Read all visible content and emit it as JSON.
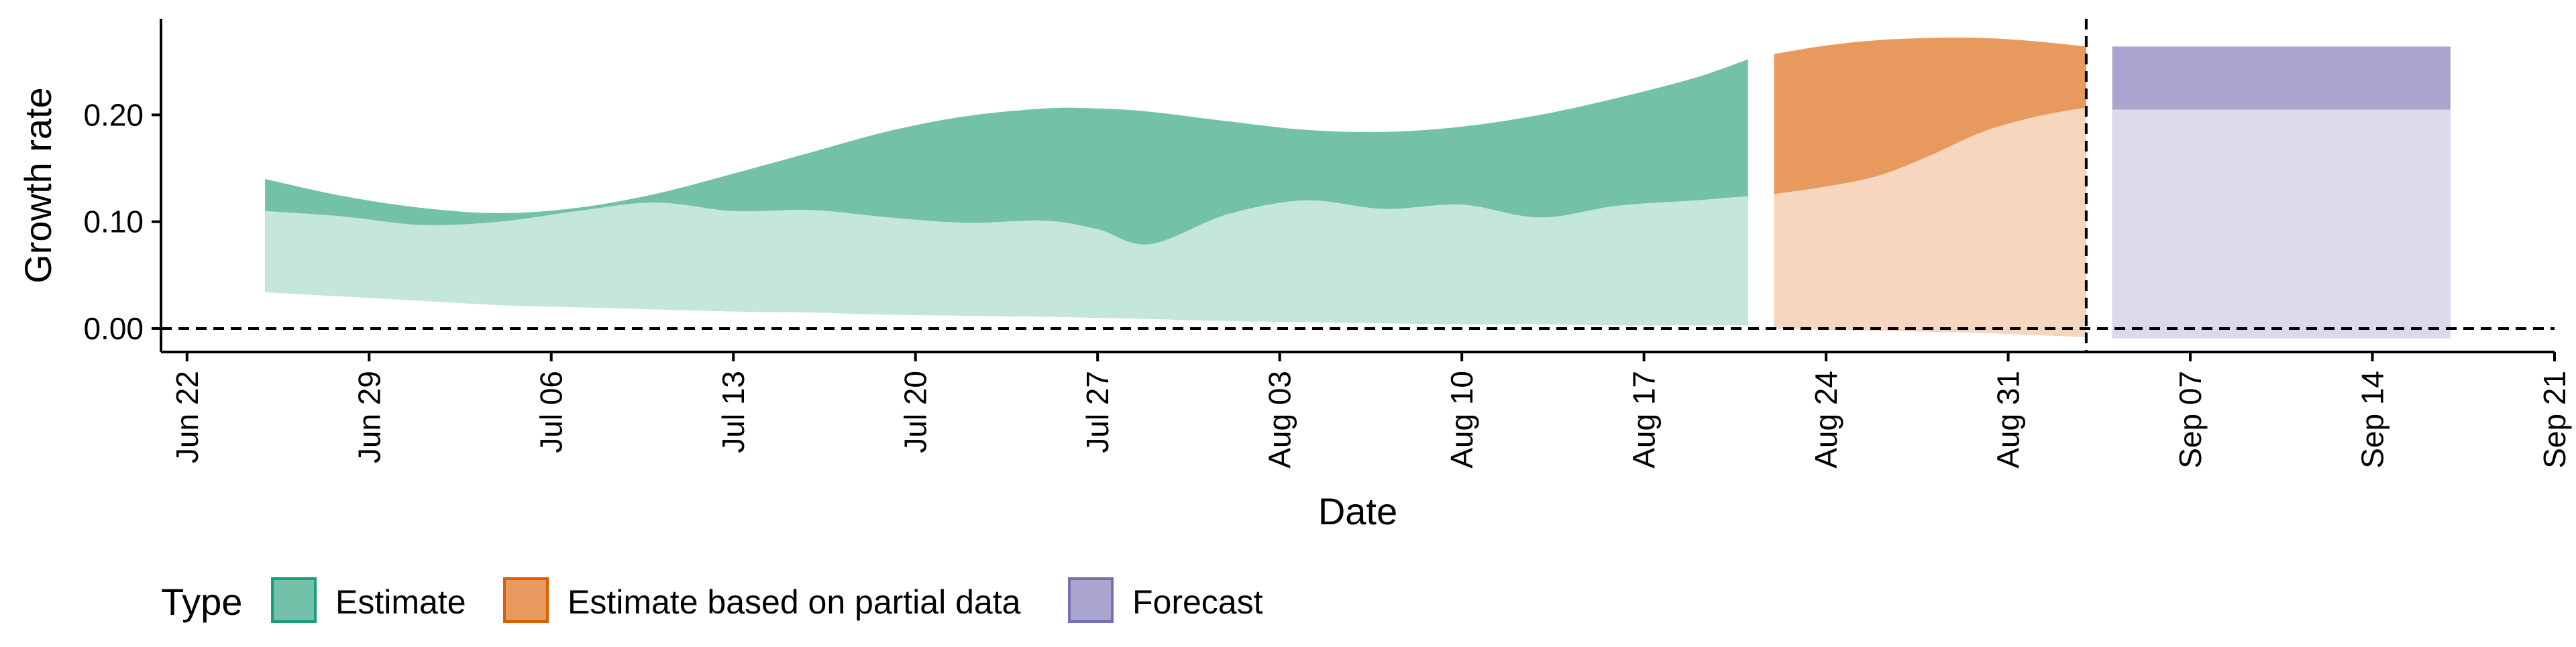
{
  "chart_data": {
    "type": "area",
    "xlabel": "Date",
    "ylabel": "Growth rate",
    "x_ticks": [
      {
        "date": "2020-06-22",
        "label": "Jun 22"
      },
      {
        "date": "2020-06-29",
        "label": "Jun 29"
      },
      {
        "date": "2020-07-06",
        "label": "Jul 06"
      },
      {
        "date": "2020-07-13",
        "label": "Jul 13"
      },
      {
        "date": "2020-07-20",
        "label": "Jul 20"
      },
      {
        "date": "2020-07-27",
        "label": "Jul 27"
      },
      {
        "date": "2020-08-03",
        "label": "Aug 03"
      },
      {
        "date": "2020-08-10",
        "label": "Aug 10"
      },
      {
        "date": "2020-08-17",
        "label": "Aug 17"
      },
      {
        "date": "2020-08-24",
        "label": "Aug 24"
      },
      {
        "date": "2020-08-31",
        "label": "Aug 31"
      },
      {
        "date": "2020-09-07",
        "label": "Sep 07"
      },
      {
        "date": "2020-09-14",
        "label": "Sep 14"
      },
      {
        "date": "2020-09-21",
        "label": "Sep 21"
      }
    ],
    "y_ticks": [
      {
        "value": 0.0,
        "label": "0.00"
      },
      {
        "value": 0.1,
        "label": "0.10"
      },
      {
        "value": 0.2,
        "label": "0.20"
      }
    ],
    "xlim": [
      "2020-06-21",
      "2020-09-21"
    ],
    "ylim": [
      -0.022,
      0.29
    ],
    "grid": false,
    "reference_lines": [
      {
        "axis": "y",
        "value": 0,
        "style": "dashed"
      },
      {
        "axis": "x",
        "value": "2020-09-03",
        "style": "dashed"
      }
    ],
    "legend": {
      "title": "Type",
      "position": "bottom-left",
      "items": [
        {
          "label": "Estimate",
          "fill": "#72C1A8",
          "border": "#1B9E77"
        },
        {
          "label": "Estimate based on partial data",
          "fill": "#E89A5E",
          "border": "#D95F02"
        },
        {
          "label": "Forecast",
          "fill": "#A9A5CE",
          "border": "#7570B3"
        }
      ]
    },
    "series": [
      {
        "name": "Estimate",
        "outer_color": "#72C1A8",
        "inner_color": "#C4E6DC",
        "dates": [
          "2020-06-25",
          "2020-06-28",
          "2020-07-01",
          "2020-07-04",
          "2020-07-07",
          "2020-07-10",
          "2020-07-13",
          "2020-07-16",
          "2020-07-19",
          "2020-07-22",
          "2020-07-25",
          "2020-07-27",
          "2020-07-29",
          "2020-08-01",
          "2020-08-04",
          "2020-08-07",
          "2020-08-10",
          "2020-08-13",
          "2020-08-16",
          "2020-08-19",
          "2020-08-21"
        ],
        "outer_upper": [
          0.14,
          0.124,
          0.113,
          0.108,
          0.113,
          0.126,
          0.145,
          0.165,
          0.185,
          0.199,
          0.206,
          0.206,
          0.203,
          0.194,
          0.186,
          0.184,
          0.189,
          0.2,
          0.216,
          0.235,
          0.252
        ],
        "inner_upper": [
          0.11,
          0.105,
          0.097,
          0.1,
          0.11,
          0.118,
          0.11,
          0.111,
          0.104,
          0.099,
          0.101,
          0.093,
          0.079,
          0.107,
          0.12,
          0.112,
          0.116,
          0.104,
          0.115,
          0.12,
          0.124
        ],
        "lower": [
          0.034,
          0.03,
          0.026,
          0.022,
          0.02,
          0.018,
          0.016,
          0.015,
          0.013,
          0.012,
          0.011,
          0.01,
          0.009,
          0.007,
          0.006,
          0.005,
          0.004,
          0.004,
          0.003,
          0.003,
          0.003
        ]
      },
      {
        "name": "Estimate based on partial data",
        "outer_color": "#E89A5E",
        "inner_color": "#F6D6BE",
        "dates": [
          "2020-08-22",
          "2020-08-24",
          "2020-08-26",
          "2020-08-28",
          "2020-08-30",
          "2020-09-01",
          "2020-09-03"
        ],
        "outer_upper": [
          0.257,
          0.265,
          0.27,
          0.272,
          0.272,
          0.269,
          0.264
        ],
        "inner_upper": [
          0.126,
          0.133,
          0.143,
          0.162,
          0.184,
          0.198,
          0.207
        ],
        "lower": [
          0.0,
          -0.001,
          -0.002,
          -0.003,
          -0.004,
          -0.006,
          -0.008
        ]
      },
      {
        "name": "Forecast",
        "outer_color": "#A9A5CE",
        "inner_color": "#DBDAEA",
        "dates": [
          "2020-09-04",
          "2020-09-17"
        ],
        "outer_upper": [
          0.264,
          0.264
        ],
        "inner_upper": [
          0.205,
          0.205
        ],
        "lower": [
          -0.009,
          -0.009
        ]
      }
    ]
  }
}
